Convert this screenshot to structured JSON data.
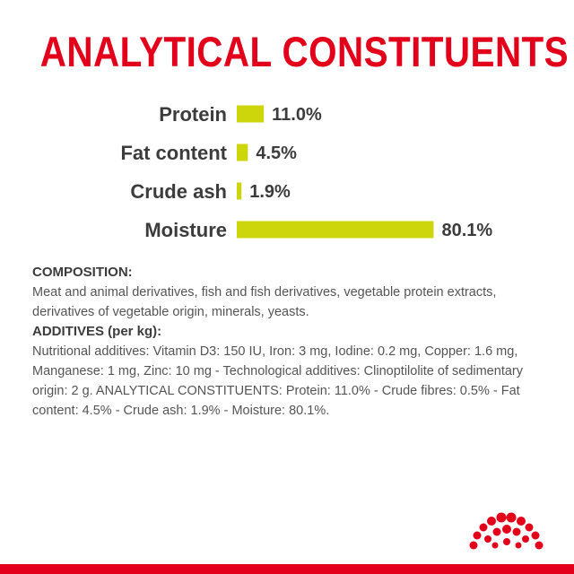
{
  "title": "ANALYTICAL CONSTITUENTS",
  "colors": {
    "title": "#e2001a",
    "bar": "#cdd60b",
    "text": "#3c3c3c",
    "brand": "#e2001a"
  },
  "chart_data": {
    "type": "bar",
    "orientation": "horizontal",
    "categories": [
      "Protein",
      "Fat content",
      "Crude ash",
      "Moisture"
    ],
    "values": [
      11.0,
      4.5,
      1.9,
      80.1
    ],
    "value_labels": [
      "11.0%",
      "4.5%",
      "1.9%",
      "80.1%"
    ],
    "title": "ANALYTICAL CONSTITUENTS",
    "xlabel": "",
    "ylabel": "",
    "xlim": [
      0,
      100
    ],
    "grid": false
  },
  "composition": {
    "heading": "COMPOSITION:",
    "text": "Meat and animal derivatives, fish and fish derivatives, vegetable protein extracts, derivatives of vegetable origin, minerals, yeasts."
  },
  "additives": {
    "heading": "ADDITIVES (per kg):",
    "text": "Nutritional additives: Vitamin D3: 150 IU, Iron: 3 mg, Iodine: 0.2 mg, Copper: 1.6 mg, Manganese: 1 mg, Zinc: 10 mg - Technological additives: Clinoptilolite of sedimentary origin: 2 g. ANALYTICAL CONSTITUENTS: Protein: 11.0% - Crude fibres: 0.5% - Fat content: 4.5% - Crude ash: 1.9% - Moisture: 80.1%."
  },
  "logo": {
    "icon": "crown-icon"
  }
}
